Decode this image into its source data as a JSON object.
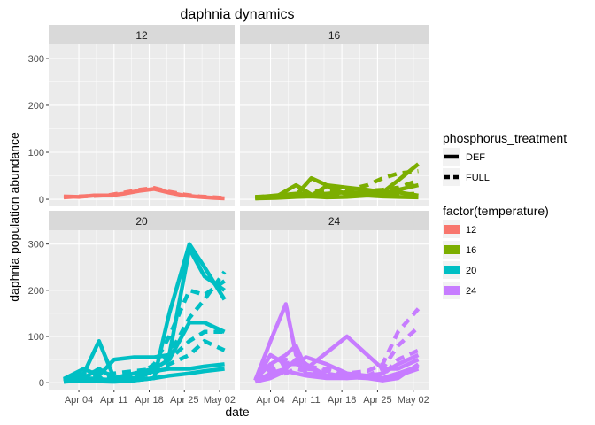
{
  "chart_data": {
    "type": "line",
    "title": "daphnia dynamics",
    "xlabel": "date",
    "ylabel": "daphnia population abundance",
    "x_ticks": [
      {
        "label": "Apr 04",
        "day": 3
      },
      {
        "label": "Apr 11",
        "day": 10
      },
      {
        "label": "Apr 18",
        "day": 17
      },
      {
        "label": "Apr 25",
        "day": 24
      },
      {
        "label": "May 02",
        "day": 31
      }
    ],
    "x_range": [
      -3,
      34
    ],
    "y_ticks": [
      0,
      100,
      200,
      300
    ],
    "ylim": [
      -15,
      330
    ],
    "facets": [
      {
        "label": "12",
        "temperature": "12",
        "series": [
          {
            "treatment": "DEF",
            "x": [
              0,
              3,
              6,
              9,
              12,
              15,
              18,
              21,
              24,
              27,
              30,
              32
            ],
            "y": [
              6,
              5,
              8,
              8,
              12,
              18,
              22,
              14,
              8,
              5,
              3,
              2
            ]
          },
          {
            "treatment": "FULL",
            "x": [
              0,
              3,
              6,
              9,
              12,
              15,
              18,
              21,
              24,
              27,
              30,
              32
            ],
            "y": [
              4,
              6,
              7,
              9,
              14,
              20,
              24,
              16,
              10,
              6,
              4,
              3
            ]
          }
        ]
      },
      {
        "label": "16",
        "temperature": "16",
        "series": [
          {
            "treatment": "DEF",
            "x": [
              0,
              4,
              8,
              11,
              14,
              18,
              22,
              25,
              28,
              32
            ],
            "y": [
              5,
              6,
              8,
              45,
              30,
              25,
              20,
              15,
              40,
              75
            ]
          },
          {
            "treatment": "DEF",
            "x": [
              0,
              4,
              8,
              11,
              14,
              18,
              22,
              25,
              28,
              32
            ],
            "y": [
              3,
              5,
              30,
              10,
              12,
              15,
              14,
              12,
              20,
              30
            ]
          },
          {
            "treatment": "DEF",
            "x": [
              0,
              4,
              8,
              11,
              14,
              18,
              22,
              25,
              28,
              32
            ],
            "y": [
              4,
              8,
              12,
              8,
              28,
              10,
              12,
              10,
              15,
              8
            ]
          },
          {
            "treatment": "DEF",
            "x": [
              0,
              4,
              8,
              11,
              14,
              18,
              22,
              25,
              28,
              32
            ],
            "y": [
              2,
              3,
              5,
              6,
              4,
              5,
              8,
              6,
              5,
              4
            ]
          },
          {
            "treatment": "FULL",
            "x": [
              0,
              4,
              8,
              11,
              14,
              18,
              22,
              25,
              28,
              32
            ],
            "y": [
              5,
              7,
              10,
              15,
              20,
              20,
              30,
              45,
              55,
              60
            ]
          },
          {
            "treatment": "FULL",
            "x": [
              0,
              4,
              8,
              11,
              14,
              18,
              22,
              25,
              28,
              32
            ],
            "y": [
              3,
              5,
              8,
              10,
              12,
              15,
              18,
              20,
              25,
              40
            ]
          },
          {
            "treatment": "FULL",
            "x": [
              0,
              4,
              8,
              11,
              14,
              18,
              22,
              25,
              28,
              32
            ],
            "y": [
              2,
              4,
              6,
              8,
              10,
              12,
              15,
              12,
              10,
              12
            ]
          }
        ]
      },
      {
        "label": "20",
        "temperature": "20",
        "series": [
          {
            "treatment": "DEF",
            "x": [
              0,
              4,
              7,
              10,
              14,
              18,
              21,
              25,
              28,
              32
            ],
            "y": [
              5,
              20,
              90,
              10,
              5,
              10,
              150,
              300,
              250,
              180
            ]
          },
          {
            "treatment": "DEF",
            "x": [
              0,
              4,
              7,
              10,
              14,
              18,
              21,
              25,
              28,
              32
            ],
            "y": [
              8,
              30,
              15,
              50,
              55,
              55,
              60,
              290,
              230,
              200
            ]
          },
          {
            "treatment": "DEF",
            "x": [
              0,
              4,
              7,
              10,
              14,
              18,
              21,
              25,
              28,
              32
            ],
            "y": [
              5,
              10,
              30,
              10,
              20,
              30,
              50,
              130,
              130,
              110
            ]
          },
          {
            "treatment": "DEF",
            "x": [
              0,
              4,
              7,
              10,
              14,
              18,
              21,
              25,
              28,
              32
            ],
            "y": [
              3,
              10,
              8,
              5,
              10,
              25,
              30,
              30,
              35,
              40
            ]
          },
          {
            "treatment": "DEF",
            "x": [
              0,
              4,
              7,
              10,
              14,
              18,
              21,
              25,
              28,
              32
            ],
            "y": [
              2,
              5,
              3,
              2,
              5,
              10,
              15,
              20,
              25,
              30
            ]
          },
          {
            "treatment": "FULL",
            "x": [
              0,
              4,
              7,
              10,
              14,
              18,
              21,
              25,
              28,
              32
            ],
            "y": [
              3,
              15,
              10,
              20,
              25,
              30,
              60,
              140,
              180,
              240
            ]
          },
          {
            "treatment": "FULL",
            "x": [
              0,
              4,
              7,
              10,
              14,
              18,
              21,
              25,
              28,
              32
            ],
            "y": [
              5,
              20,
              25,
              15,
              10,
              40,
              100,
              200,
              190,
              220
            ]
          },
          {
            "treatment": "FULL",
            "x": [
              0,
              4,
              7,
              10,
              14,
              18,
              21,
              25,
              28,
              32
            ],
            "y": [
              2,
              8,
              20,
              10,
              15,
              30,
              50,
              90,
              110,
              110
            ]
          },
          {
            "treatment": "FULL",
            "x": [
              0,
              4,
              7,
              10,
              14,
              18,
              21,
              25,
              28,
              32
            ],
            "y": [
              4,
              12,
              10,
              8,
              12,
              20,
              40,
              60,
              90,
              70
            ]
          }
        ]
      },
      {
        "label": "24",
        "temperature": "24",
        "series": [
          {
            "treatment": "DEF",
            "x": [
              0,
              3,
              6,
              8,
              10,
              14,
              18,
              22,
              25,
              28,
              32
            ],
            "y": [
              5,
              90,
              170,
              60,
              40,
              15,
              10,
              15,
              20,
              40,
              60
            ]
          },
          {
            "treatment": "DEF",
            "x": [
              0,
              3,
              6,
              8,
              10,
              14,
              18,
              22,
              25,
              28,
              32
            ],
            "y": [
              8,
              40,
              60,
              80,
              30,
              65,
              100,
              60,
              30,
              30,
              50
            ]
          },
          {
            "treatment": "DEF",
            "x": [
              0,
              3,
              6,
              8,
              10,
              14,
              18,
              22,
              25,
              28,
              32
            ],
            "y": [
              5,
              60,
              40,
              40,
              55,
              40,
              20,
              15,
              10,
              20,
              35
            ]
          },
          {
            "treatment": "DEF",
            "x": [
              0,
              3,
              6,
              8,
              10,
              14,
              18,
              22,
              25,
              28,
              32
            ],
            "y": [
              3,
              20,
              30,
              50,
              20,
              15,
              15,
              10,
              5,
              10,
              40
            ]
          },
          {
            "treatment": "DEF",
            "x": [
              0,
              3,
              6,
              8,
              10,
              14,
              18,
              22,
              25,
              28,
              32
            ],
            "y": [
              2,
              10,
              25,
              20,
              15,
              10,
              10,
              12,
              8,
              15,
              30
            ]
          },
          {
            "treatment": "FULL",
            "x": [
              0,
              3,
              6,
              8,
              10,
              14,
              18,
              22,
              25,
              28,
              32
            ],
            "y": [
              5,
              30,
              50,
              40,
              35,
              30,
              20,
              25,
              40,
              110,
              160
            ]
          },
          {
            "treatment": "FULL",
            "x": [
              0,
              3,
              6,
              8,
              10,
              14,
              18,
              22,
              25,
              28,
              32
            ],
            "y": [
              4,
              25,
              40,
              50,
              30,
              25,
              15,
              15,
              30,
              80,
              120
            ]
          },
          {
            "treatment": "FULL",
            "x": [
              0,
              3,
              6,
              8,
              10,
              14,
              18,
              22,
              25,
              28,
              32
            ],
            "y": [
              3,
              15,
              20,
              30,
              25,
              20,
              12,
              10,
              15,
              50,
              70
            ]
          }
        ]
      }
    ],
    "legend": {
      "placement": "right",
      "linetype_title": "phosphorus_treatment",
      "linetype_entries": [
        "DEF",
        "FULL"
      ],
      "color_title": "factor(temperature)",
      "color_entries": [
        {
          "label": "12",
          "color": "#F8766D"
        },
        {
          "label": "16",
          "color": "#7CAE00"
        },
        {
          "label": "20",
          "color": "#00BFC4"
        },
        {
          "label": "24",
          "color": "#C77CFF"
        }
      ]
    },
    "grid": true,
    "panel_bg": "#EBEBEB",
    "strip_bg": "#D9D9D9"
  }
}
